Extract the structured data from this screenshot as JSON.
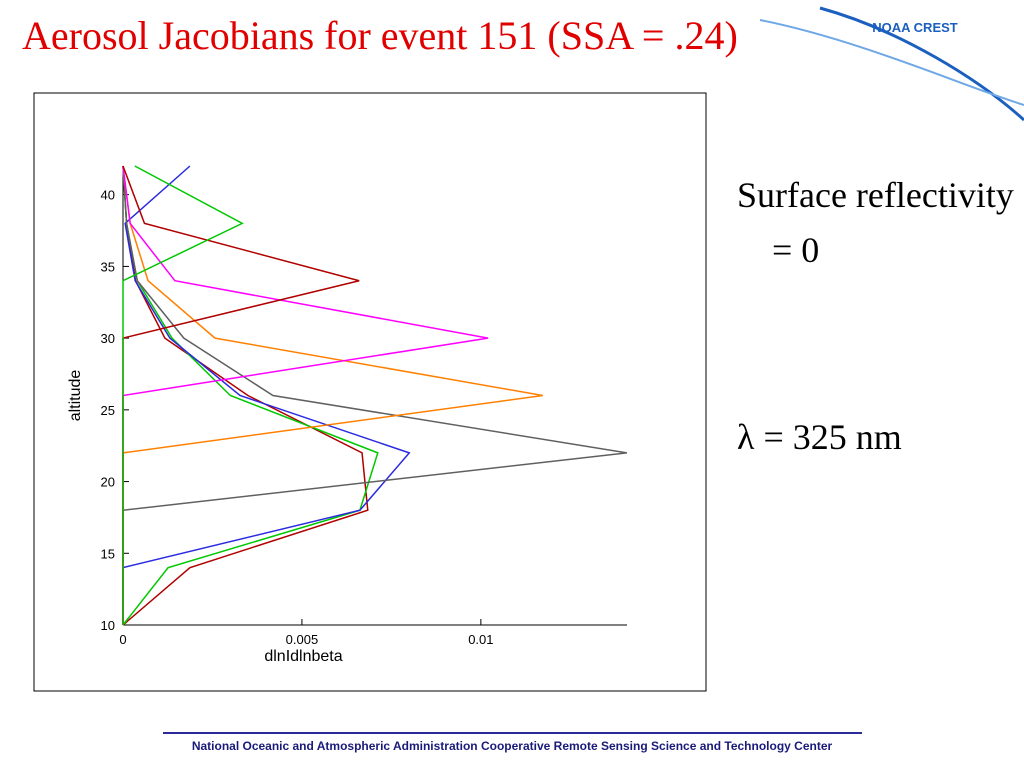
{
  "title": "Aerosol Jacobians for event 151 (SSA = .24)",
  "logo": "NOAA CREST",
  "notes": [
    "Surface reflectivity = 0",
    "λ = 325 nm"
  ],
  "footer": "National Oceanic and Atmospheric Administration Cooperative Remote Sensing Science and Technology Center",
  "chart_data": {
    "type": "line",
    "x_label": "dlnIdlnbeta",
    "y_label": "altitude",
    "y": [
      10,
      14,
      18,
      22,
      26,
      30,
      34,
      38,
      42
    ],
    "series": [
      {
        "color": "#b00000",
        "values": [
          0,
          0.00187,
          0.00684,
          0.00668,
          0.00349,
          0.00117,
          0.00035,
          0.0001,
          0
        ]
      },
      {
        "color": "#00c800",
        "values": [
          0,
          0.00126,
          0.00662,
          0.00712,
          0.003,
          0.00137,
          0.0004,
          0.0001,
          0
        ]
      },
      {
        "color": "#2a2ae0",
        "values": [
          0,
          0,
          0.00662,
          0.008,
          0.00327,
          0.00131,
          0.00034,
          6e-05,
          0.00187
        ]
      },
      {
        "color": "#606060",
        "values": [
          0,
          0,
          0,
          0.01408,
          0.00419,
          0.0017,
          0.0004,
          0.0001,
          0
        ]
      },
      {
        "color": "#ff8000",
        "values": [
          0,
          0,
          0,
          0,
          0.01173,
          0.00257,
          0.0007,
          0.0002,
          0
        ]
      },
      {
        "color": "#ff00ff",
        "values": [
          0,
          0,
          0,
          0,
          0,
          0.0102,
          0.00145,
          0.0002,
          0
        ]
      },
      {
        "color": "#b00000",
        "values": [
          0,
          0,
          0,
          0,
          0,
          0,
          0.0066,
          0.0006,
          0
        ]
      },
      {
        "color": "#00c800",
        "values": [
          0,
          0,
          0,
          0,
          0,
          0,
          0,
          0.00333,
          0.00033
        ]
      }
    ],
    "xlim": [
      0,
      0.014
    ],
    "xticks": [
      0,
      0.005,
      0.01
    ],
    "ylim": [
      10,
      42
    ],
    "yticks": [
      10,
      15,
      20,
      25,
      30,
      35,
      40
    ]
  }
}
